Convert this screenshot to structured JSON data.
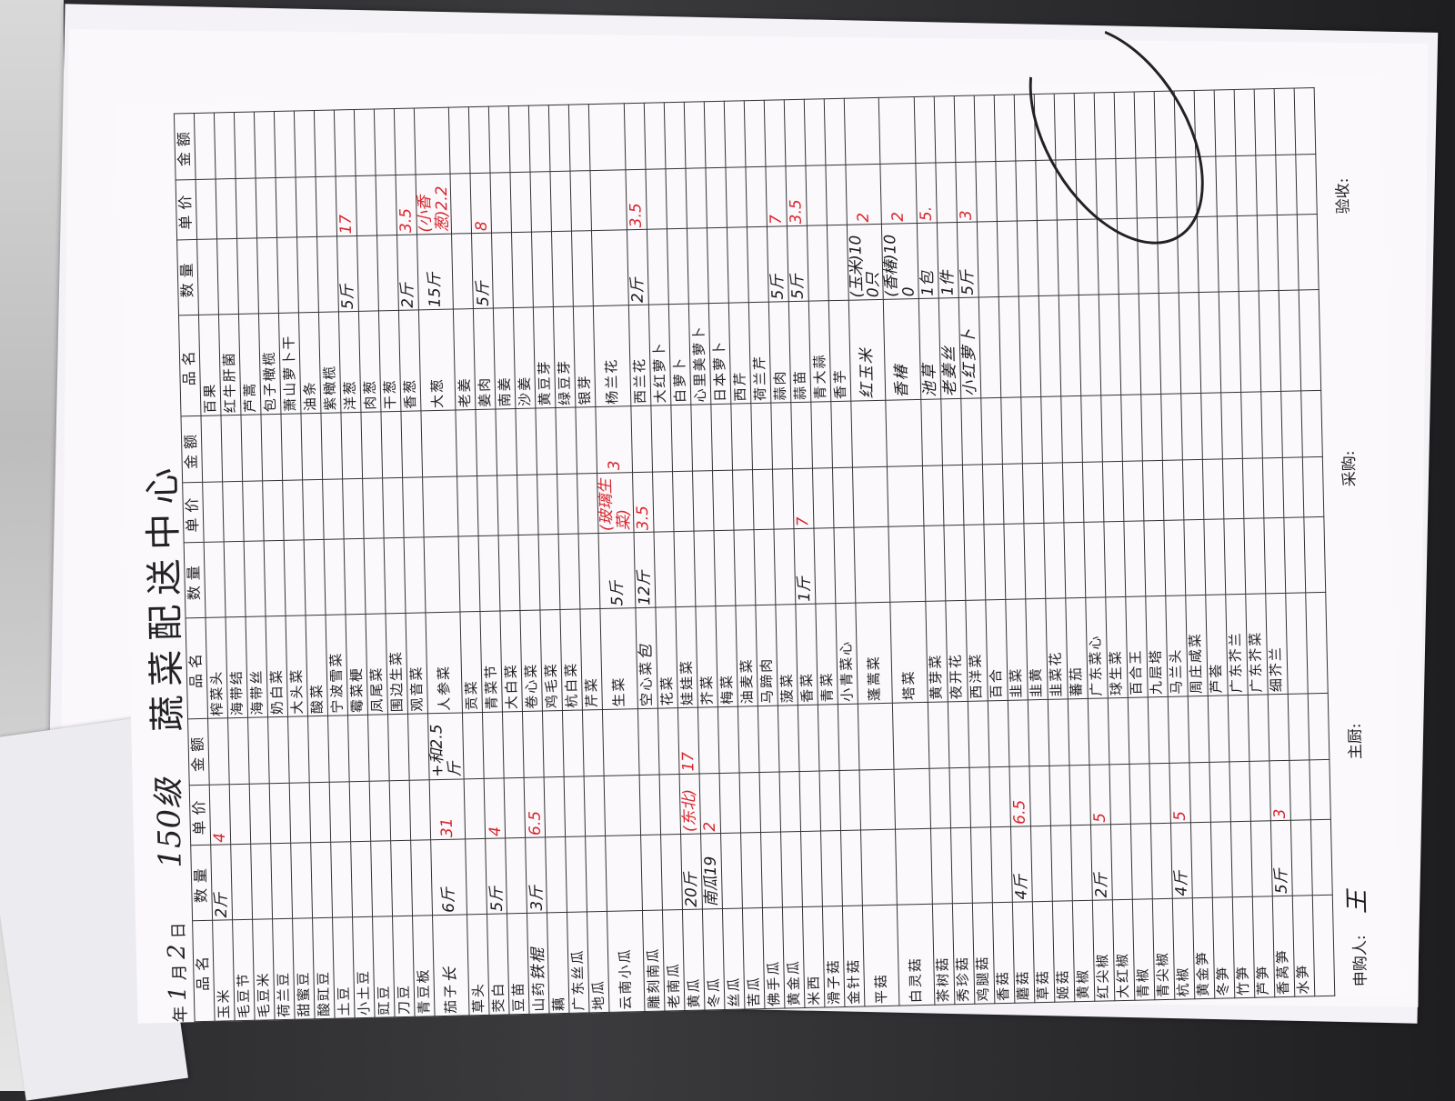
{
  "header": {
    "title": "蔬菜配送中心",
    "handwritten_prefix": "150级",
    "date_label_year": "年",
    "date_month": "1",
    "date_label_month": "月",
    "date_day": "2",
    "date_label_day": "日"
  },
  "columns": [
    "品名",
    "数量",
    "单价",
    "金额"
  ],
  "groups": [
    {
      "items": [
        "玉米",
        "毛豆节",
        "毛豆米",
        "荷兰豆",
        "甜蜜豆",
        "酸豇豆",
        "土豆",
        "小土豆",
        "豇豆",
        "刀豆",
        "青豆板",
        "茄子",
        "草头",
        "茭白",
        "豆苗",
        "山药",
        "藕",
        "广东丝瓜",
        "地瓜",
        "云南小瓜",
        "雕刻南瓜",
        "老南瓜",
        "黄瓜",
        "冬瓜",
        "丝瓜",
        "苦瓜",
        "佛手瓜",
        "黄金瓜",
        "米西",
        "滑子菇",
        "金针菇",
        "平菇",
        "白灵菇",
        "茶树菇",
        "秀珍菇",
        "鸡腿菇",
        "香菇",
        "蘑菇",
        "草菇",
        "姬菇",
        "黄椒",
        "红尖椒",
        "大红椒",
        "青椒",
        "青尖椒",
        "杭椒",
        "黄金笋",
        "冬笋",
        "竹笋",
        "芦笋",
        "香莴笋",
        "水笋"
      ],
      "entries": [
        {
          "row": 0,
          "qty": "2斤",
          "price": "4",
          "amount": ""
        },
        {
          "row": 11,
          "name_note": "长",
          "qty": "6斤",
          "price": "31",
          "amount": "+和2.5斤"
        },
        {
          "row": 13,
          "qty": "5斤",
          "price": "4",
          "amount": ""
        },
        {
          "row": 15,
          "name_note": "铁棍",
          "qty": "3斤",
          "price": "6.5",
          "amount": ""
        },
        {
          "row": 22,
          "qty": "20斤",
          "price": "(东北)",
          "amount": "17"
        },
        {
          "row": 23,
          "qty": "南瓜19",
          "price": "2",
          "amount": ""
        },
        {
          "row": 37,
          "qty": "4斤",
          "price": "6.5",
          "amount": ""
        },
        {
          "row": 41,
          "qty": "2斤",
          "price": "5",
          "amount": ""
        },
        {
          "row": 45,
          "qty": "4斤",
          "price": "5",
          "amount": ""
        },
        {
          "row": 50,
          "qty": "5斤",
          "price": "3",
          "amount": ""
        }
      ]
    },
    {
      "items": [
        "榨菜头",
        "海带结",
        "海带丝",
        "奶白菜",
        "大头菜",
        "酸菜",
        "宁波雪菜",
        "霉菜梗",
        "凤尾菜",
        "围边生菜",
        "观音菜",
        "人参菜",
        "贡菜",
        "青菜节",
        "大白菜",
        "卷心菜",
        "鸡毛菜",
        "杭白菜",
        "芹菜",
        "生菜",
        "空心菜",
        "花菜",
        "娃娃菜",
        "芥菜",
        "梅菜",
        "油麦菜",
        "马蹄肉",
        "菠菜",
        "香菜",
        "青菜",
        "小青菜心",
        "蓬蒿菜",
        "塔菜",
        "黄芽菜",
        "夜开花",
        "西洋菜",
        "百合",
        "韭菜",
        "韭黄",
        "韭菜花",
        "蕃茄",
        "广东菜心",
        "球生菜",
        "百合王",
        "九层塔",
        "马兰头",
        "周庄咸菜",
        "芦荟",
        "广东芥兰",
        "广东芥菜",
        "细芥兰"
      ],
      "entries": [
        {
          "row": 19,
          "qty": "5斤",
          "price": "(玻璃生菜)",
          "amount": "3"
        },
        {
          "row": 20,
          "name_note": "包",
          "qty": "12斤",
          "price": "3.5",
          "amount": ""
        },
        {
          "row": 28,
          "qty": "1斤",
          "price": "7",
          "amount": ""
        }
      ]
    },
    {
      "items": [
        "百果",
        "红牛肝菌",
        "芦蒿",
        "包子橄榄",
        "萧山萝卜干",
        "油条",
        "紫橄榄",
        "洋葱",
        "肉葱",
        "干葱",
        "香葱",
        "大葱",
        "老姜",
        "姜肉",
        "南姜",
        "沙姜",
        "黄豆芽",
        "绿豆芽",
        "银芽",
        "杨兰花",
        "西兰花",
        "大红萝卜",
        "白萝卜",
        "心里美萝卜",
        "日本萝卜",
        "西芹",
        "荷兰芹",
        "蒜肉",
        "蒜苗",
        "青大蒜",
        "香芋"
      ],
      "entries": [
        {
          "row": 7,
          "qty": "5斤",
          "price": "17",
          "amount": ""
        },
        {
          "row": 10,
          "qty": "2斤",
          "price": "3.5",
          "amount": ""
        },
        {
          "row": 11,
          "qty": "15斤",
          "price": "(小香葱)2.2",
          "amount": ""
        },
        {
          "row": 13,
          "qty": "5斤",
          "price": "8",
          "amount": ""
        },
        {
          "row": 20,
          "qty": "2斤",
          "price": "3.5",
          "amount": ""
        },
        {
          "row": 27,
          "qty": "5斤",
          "price": "7",
          "amount": ""
        },
        {
          "row": 28,
          "qty": "5斤",
          "price": "3.5",
          "amount": ""
        },
        {
          "row": 31,
          "hand_name": "红玉米",
          "qty": "(玉米)100只",
          "price": "2",
          "amount": ""
        },
        {
          "row": 32,
          "hand_name": "香椿",
          "qty": "(香椿)100",
          "price": "2",
          "amount": ""
        },
        {
          "row": 33,
          "hand_name": "池草",
          "qty": "1包",
          "price": "5.",
          "amount": ""
        },
        {
          "row": 34,
          "hand_name": "老姜丝",
          "qty": "1件",
          "price": "",
          "amount": ""
        },
        {
          "row": 35,
          "hand_name": "小红萝卜",
          "qty": "5斤",
          "price": "3",
          "amount": ""
        }
      ]
    }
  ],
  "footer": {
    "requester_label": "申购人:",
    "requester_signature": "王",
    "chef_label": "主厨:",
    "purchaser_label": "采购:",
    "inspector_label": "验收:"
  },
  "colors": {
    "ink_red": "#d9262c",
    "ink_black": "#1b1b1b",
    "paper": "#fbf9fc"
  }
}
